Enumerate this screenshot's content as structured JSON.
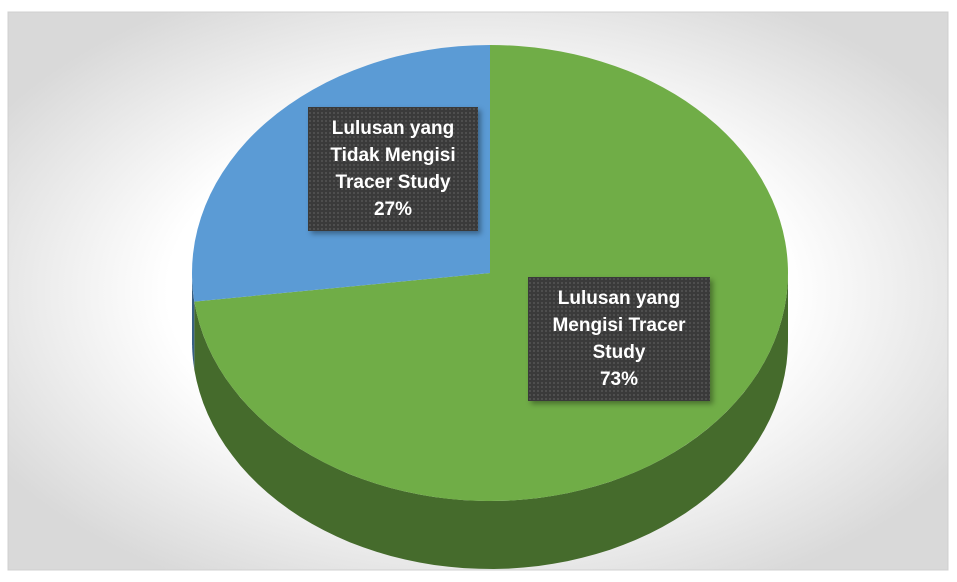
{
  "chart_data": {
    "type": "pie",
    "categories": [
      "Lulusan yang Mengisi Tracer Study",
      "Lulusan yang Tidak Mengisi Tracer Study"
    ],
    "values": [
      73,
      27
    ],
    "value_labels": [
      "73%",
      "27%"
    ],
    "colors": [
      "#70ad47",
      "#5b9bd5"
    ]
  }
}
